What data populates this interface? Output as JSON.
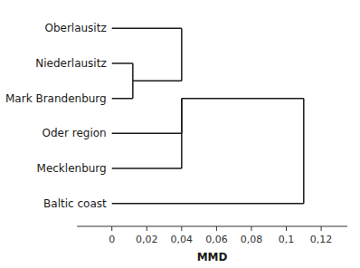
{
  "chart_data": {
    "type": "dendrogram",
    "xlabel": "MMD",
    "categories": [
      "Oberlausitz",
      "Niederlausitz",
      "Mark Brandenburg",
      "Oder region",
      "Mecklenburg",
      "Baltic coast"
    ],
    "merges": [
      {
        "leaves": [
          "Niederlausitz",
          "Mark Brandenburg"
        ],
        "value": 0.012
      },
      {
        "leaves": [
          "Oberlausitz",
          "Niederlausitz",
          "Mark Brandenburg"
        ],
        "value": 0.04
      },
      {
        "leaves": [
          "Oberlausitz",
          "Niederlausitz",
          "Mark Brandenburg",
          "Oder region"
        ],
        "value": 0.04
      },
      {
        "leaves": [
          "Oberlausitz",
          "Niederlausitz",
          "Mark Brandenburg",
          "Oder region",
          "Mecklenburg"
        ],
        "value": 0.04
      },
      {
        "leaves": [
          "Oberlausitz",
          "Niederlausitz",
          "Mark Brandenburg",
          "Oder region",
          "Mecklenburg",
          "Baltic coast"
        ],
        "value": 0.11
      }
    ],
    "xlim": [
      -0.02,
      0.135
    ],
    "xticks": [
      0,
      {
        "value": 0.02,
        "label": "0,02"
      },
      {
        "value": 0.04,
        "label": "0,04"
      },
      {
        "value": 0.06,
        "label": "0,06"
      },
      {
        "value": 0.08,
        "label": "0,08"
      },
      {
        "value": 0.1,
        "label": "0,1"
      },
      {
        "value": 0.12,
        "label": "0,12"
      }
    ],
    "color": "#1a1a1a"
  }
}
